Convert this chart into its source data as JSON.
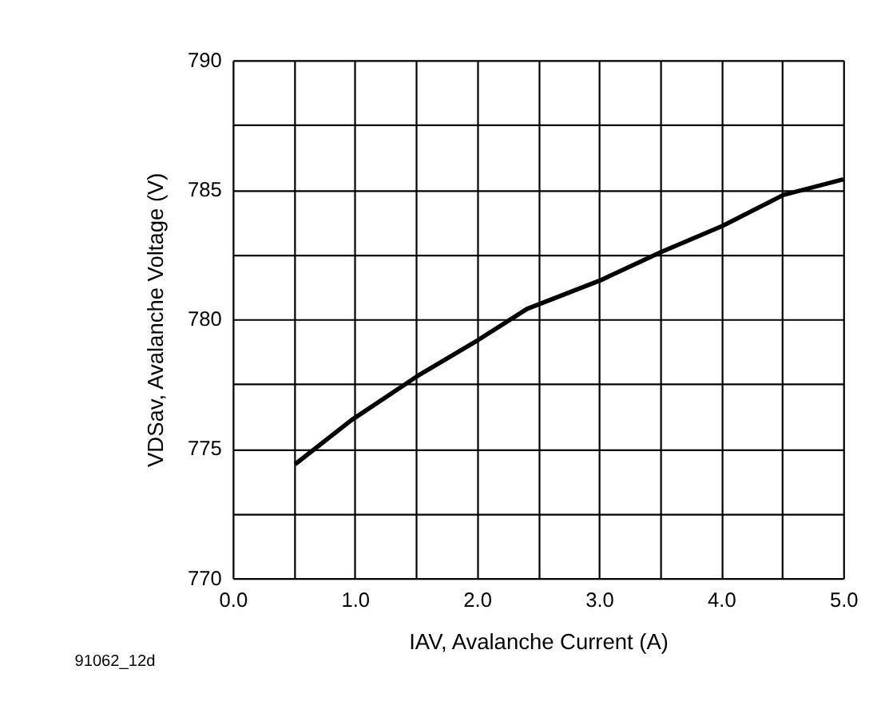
{
  "chart_data": {
    "type": "line",
    "xlabel": "IAV, Avalanche Current (A)",
    "ylabel": "VDSav, Avalanche Voltage (V)",
    "annotations": [
      "91062_12d"
    ],
    "series": [
      {
        "color": "#000000",
        "x": [
          0.51,
          0.97,
          1.51,
          2.01,
          2.41,
          3.01,
          3.51,
          4.01,
          4.51,
          5.0
        ],
        "values": [
          774.4,
          776.1,
          777.8,
          779.2,
          780.4,
          781.5,
          782.6,
          783.6,
          784.8,
          785.4
        ]
      }
    ],
    "xlim": [
      0,
      5
    ],
    "xticks": [
      {
        "value": 0,
        "label": "0.0"
      },
      {
        "value": 0.5,
        "label": null
      },
      {
        "value": 1,
        "label": "1.0"
      },
      {
        "value": 1.5,
        "label": null
      },
      {
        "value": 2,
        "label": "2.0"
      },
      {
        "value": 2.5,
        "label": null
      },
      {
        "value": 3,
        "label": "3.0"
      },
      {
        "value": 3.5,
        "label": null
      },
      {
        "value": 4,
        "label": "4.0"
      },
      {
        "value": 4.5,
        "label": null
      },
      {
        "value": 5,
        "label": "5.0"
      }
    ],
    "ylim": [
      770,
      790
    ],
    "yticks": [
      770,
      {
        "value": 772.5,
        "label": null
      },
      775,
      {
        "value": 777.5,
        "label": null
      },
      780,
      {
        "value": 782.5,
        "label": null
      },
      785,
      {
        "value": 787.5,
        "label": null
      },
      790
    ],
    "grid": true,
    "marker": "none",
    "line_style": "solid"
  }
}
